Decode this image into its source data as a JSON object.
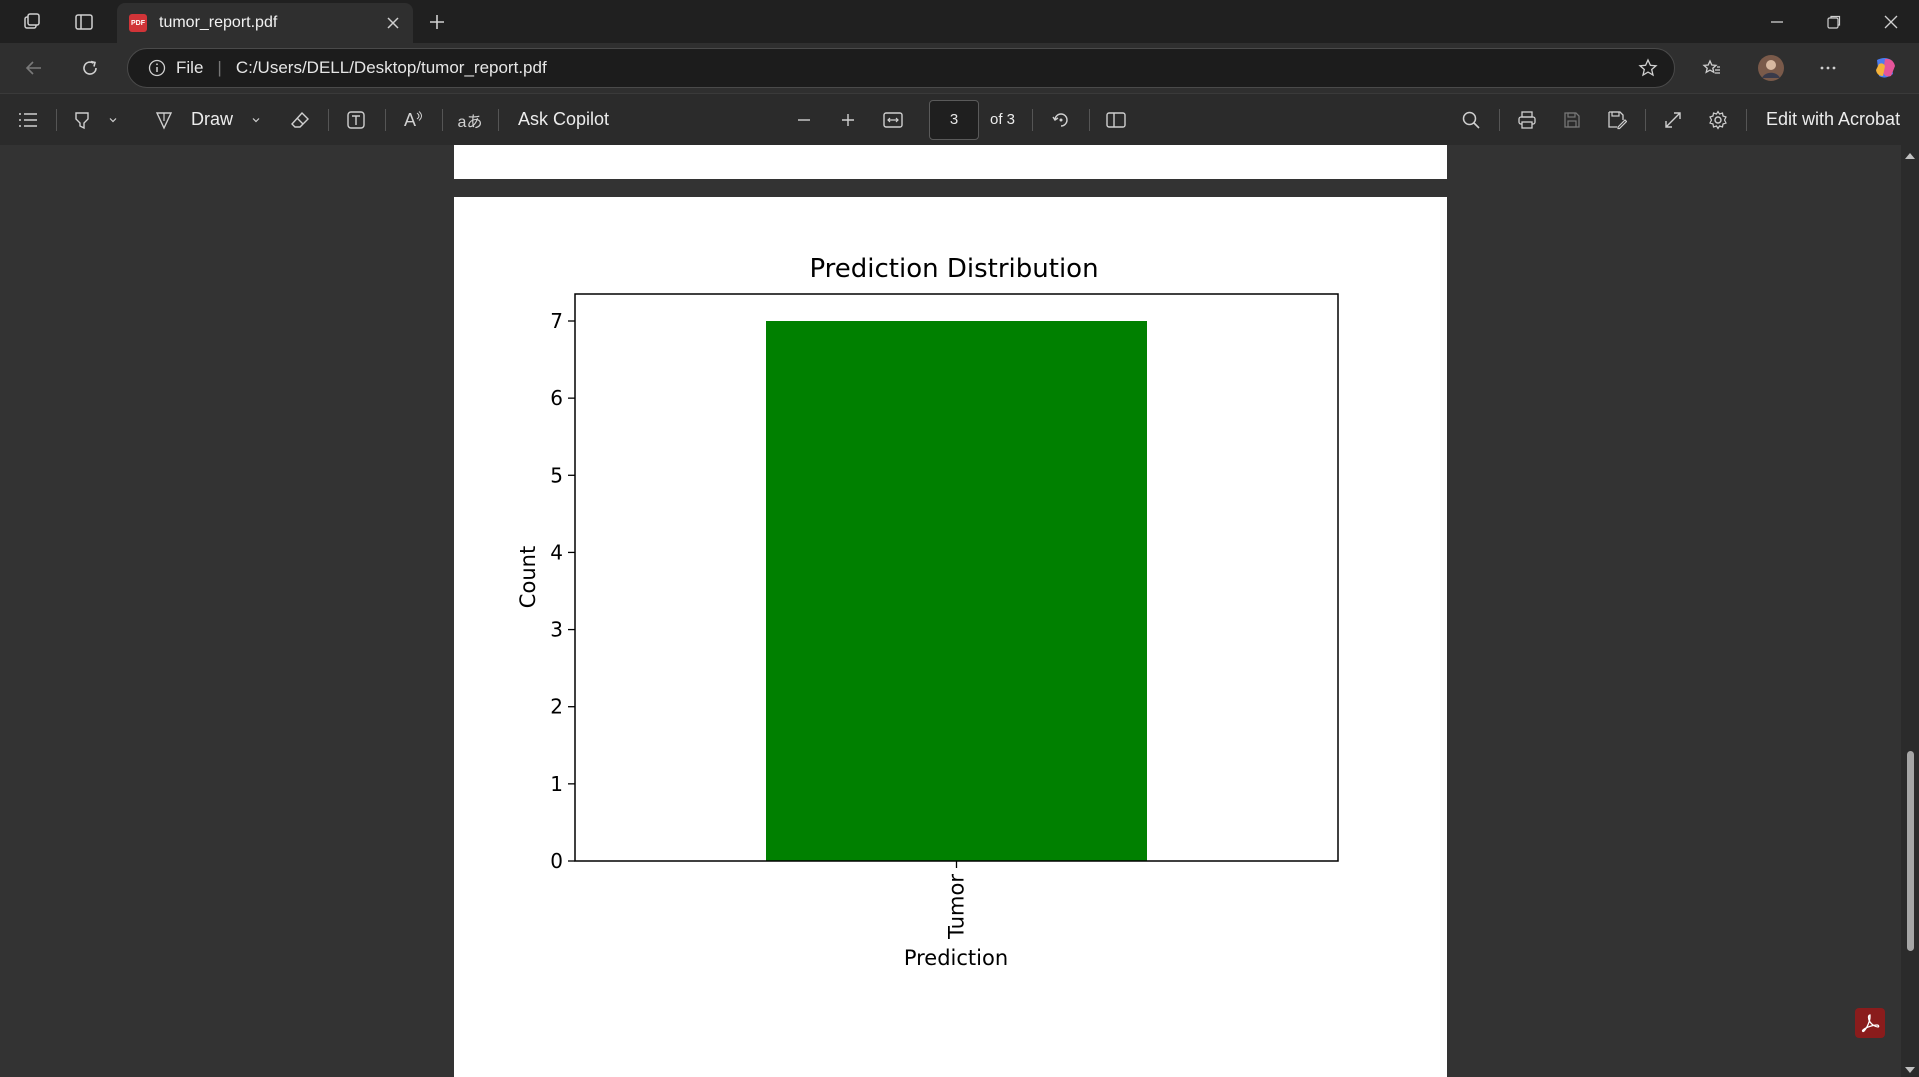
{
  "browser": {
    "tab": {
      "title": "tumor_report.pdf",
      "favicon_label": "PDF"
    },
    "address": {
      "scheme_label": "File",
      "url": "C:/Users/DELL/Desktop/tumor_report.pdf"
    },
    "icons": {
      "workspaces": "workspaces-icon",
      "tab_actions": "tab-actions-icon",
      "close_tab": "close-icon",
      "new_tab": "plus-icon",
      "minimize": "minimize-icon",
      "restore": "restore-icon",
      "close_window": "close-icon",
      "back": "back-arrow-icon",
      "refresh": "refresh-icon",
      "info": "info-icon",
      "favorite": "star-icon",
      "favorites_list": "favorites-icon",
      "profile": "avatar",
      "more": "more-icon",
      "copilot": "copilot-icon"
    }
  },
  "pdf_toolbar": {
    "draw_label": "Draw",
    "ask_copilot_label": "Ask Copilot",
    "page_current": "3",
    "page_total": "of 3",
    "edit_acrobat_label": "Edit with Acrobat",
    "read_aloud_glyph": "A",
    "translate_glyph": "aあ"
  },
  "chart_data": {
    "type": "bar",
    "title": "Prediction Distribution",
    "xlabel": "Prediction",
    "ylabel": "Count",
    "categories": [
      "Tumor"
    ],
    "values": [
      7
    ],
    "ylim": [
      0,
      7.35
    ],
    "yticks": [
      0,
      1,
      2,
      3,
      4,
      5,
      6,
      7
    ],
    "bar_color": "#008000",
    "grid": false
  },
  "colors": {
    "acrobat_red": "#8a1c1c",
    "bar": "#008000"
  }
}
